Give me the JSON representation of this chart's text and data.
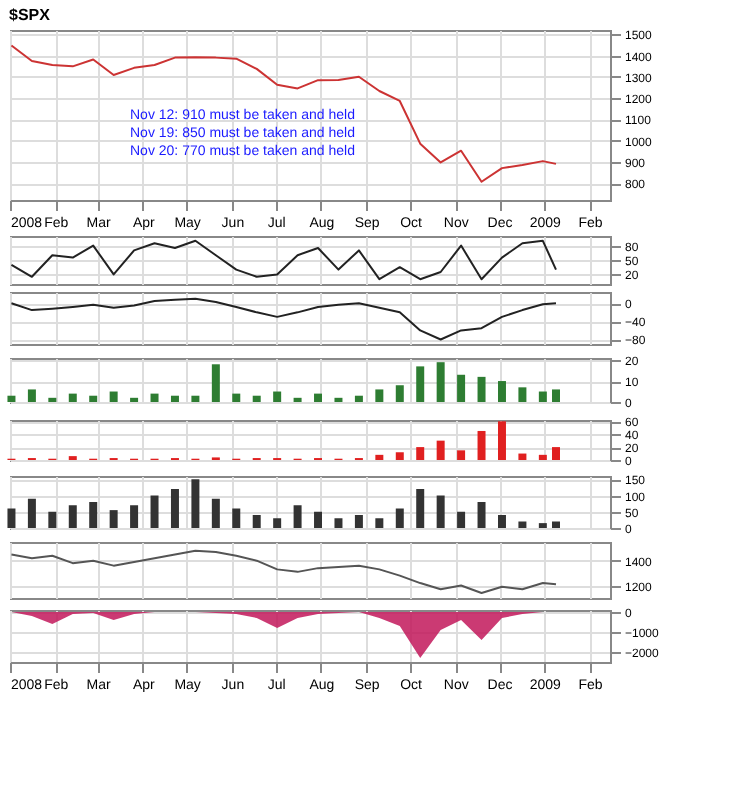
{
  "chart_data": [
    {
      "type": "line",
      "title": "$SPX",
      "x": [
        "2008-01-02",
        "2008-01-16",
        "2008-01-30",
        "2008-02-13",
        "2008-02-27",
        "2008-03-12",
        "2008-03-26",
        "2008-04-09",
        "2008-04-23",
        "2008-05-07",
        "2008-05-21",
        "2008-06-04",
        "2008-06-18",
        "2008-07-02",
        "2008-07-16",
        "2008-07-30",
        "2008-08-13",
        "2008-08-27",
        "2008-09-10",
        "2008-09-24",
        "2008-10-08",
        "2008-10-22",
        "2008-11-05",
        "2008-11-19",
        "2008-12-03",
        "2008-12-17",
        "2008-12-31",
        "2009-01-09"
      ],
      "series": [
        {
          "color": "#cc3333",
          "values": [
            1447,
            1374,
            1355,
            1349,
            1381,
            1308,
            1342,
            1355,
            1390,
            1392,
            1390,
            1385,
            1337,
            1262,
            1245,
            1284,
            1285,
            1300,
            1233,
            1186,
            985,
            897,
            952,
            806,
            870,
            885,
            903,
            890
          ]
        }
      ],
      "ylim": [
        720,
        1520
      ],
      "yticks": [
        800,
        900,
        1000,
        1100,
        1200,
        1300,
        1400,
        1500
      ],
      "grid": true,
      "xlim": [
        "2008-01-01",
        "2009-02-15"
      ],
      "xticks": [
        {
          "value": "2008-01-01",
          "label": "2008"
        },
        {
          "value": "2008-02-01",
          "label": "Feb"
        },
        {
          "value": "2008-03-01",
          "label": "Mar"
        },
        {
          "value": "2008-04-01",
          "label": "Apr"
        },
        {
          "value": "2008-05-01",
          "label": "May"
        },
        {
          "value": "2008-06-01",
          "label": "Jun"
        },
        {
          "value": "2008-07-01",
          "label": "Jul"
        },
        {
          "value": "2008-08-01",
          "label": "Aug"
        },
        {
          "value": "2008-09-01",
          "label": "Sep"
        },
        {
          "value": "2008-10-01",
          "label": "Oct"
        },
        {
          "value": "2008-11-01",
          "label": "Nov"
        },
        {
          "value": "2008-12-01",
          "label": "Dec"
        },
        {
          "value": "2009-01-01",
          "label": "2009"
        },
        {
          "value": "2009-02-01",
          "label": "Feb"
        }
      ],
      "annotations": [
        "Nov 12: 910 must be taken and held",
        "Nov 19: 850 must be taken and held",
        "Nov 20: 770 must be taken and held"
      ]
    },
    {
      "type": "line",
      "x": [
        "2008-01-02",
        "2008-01-16",
        "2008-01-30",
        "2008-02-13",
        "2008-02-27",
        "2008-03-12",
        "2008-03-26",
        "2008-04-09",
        "2008-04-23",
        "2008-05-07",
        "2008-05-21",
        "2008-06-04",
        "2008-06-18",
        "2008-07-02",
        "2008-07-16",
        "2008-07-30",
        "2008-08-13",
        "2008-08-27",
        "2008-09-10",
        "2008-09-24",
        "2008-10-08",
        "2008-10-22",
        "2008-11-05",
        "2008-11-19",
        "2008-12-03",
        "2008-12-17",
        "2008-12-31",
        "2009-01-09"
      ],
      "series": [
        {
          "color": "#222222",
          "values": [
            40,
            15,
            60,
            55,
            80,
            20,
            70,
            85,
            75,
            90,
            60,
            30,
            15,
            20,
            60,
            75,
            30,
            70,
            10,
            35,
            10,
            25,
            80,
            10,
            55,
            85,
            90,
            30
          ]
        }
      ],
      "ylim": [
        0,
        100
      ],
      "yticks": [
        20,
        50,
        80
      ],
      "grid": true,
      "tick_labels": "y",
      "xlim": [
        "2008-01-01",
        "2009-02-15"
      ]
    },
    {
      "type": "line",
      "x": [
        "2008-01-02",
        "2008-01-16",
        "2008-01-30",
        "2008-02-13",
        "2008-02-27",
        "2008-03-12",
        "2008-03-26",
        "2008-04-09",
        "2008-04-23",
        "2008-05-07",
        "2008-05-21",
        "2008-06-04",
        "2008-06-18",
        "2008-07-02",
        "2008-07-16",
        "2008-07-30",
        "2008-08-13",
        "2008-08-27",
        "2008-09-10",
        "2008-09-24",
        "2008-10-08",
        "2008-10-22",
        "2008-11-05",
        "2008-11-19",
        "2008-12-03",
        "2008-12-17",
        "2008-12-31",
        "2009-01-09"
      ],
      "series": [
        {
          "color": "#222222",
          "values": [
            0,
            -15,
            -12,
            -8,
            -3,
            -10,
            -5,
            5,
            8,
            10,
            3,
            -8,
            -20,
            -30,
            -20,
            -8,
            -3,
            0,
            -10,
            -20,
            -60,
            -80,
            -60,
            -55,
            -30,
            -15,
            -2,
            0
          ]
        }
      ],
      "ylim": [
        -90,
        25
      ],
      "yticks": [
        -80,
        -40,
        0
      ],
      "grid": true,
      "tick_labels": "y",
      "xlim": [
        "2008-01-01",
        "2009-02-15"
      ]
    },
    {
      "type": "bar",
      "x": [
        "2008-01-02",
        "2008-01-16",
        "2008-01-30",
        "2008-02-13",
        "2008-02-27",
        "2008-03-12",
        "2008-03-26",
        "2008-04-09",
        "2008-04-23",
        "2008-05-07",
        "2008-05-21",
        "2008-06-04",
        "2008-06-18",
        "2008-07-02",
        "2008-07-16",
        "2008-07-30",
        "2008-08-13",
        "2008-08-27",
        "2008-09-10",
        "2008-09-24",
        "2008-10-08",
        "2008-10-22",
        "2008-11-05",
        "2008-11-19",
        "2008-12-03",
        "2008-12-17",
        "2008-12-31",
        "2009-01-09"
      ],
      "series": [
        {
          "color": "#2e7d32",
          "values": [
            3,
            6,
            2,
            4,
            3,
            5,
            2,
            4,
            3,
            3,
            18,
            4,
            3,
            5,
            2,
            4,
            2,
            3,
            6,
            8,
            17,
            19,
            13,
            12,
            10,
            7,
            5,
            6
          ]
        }
      ],
      "ylim": [
        0,
        21
      ],
      "yticks": [
        0,
        10,
        20
      ],
      "grid": true,
      "tick_labels": "y",
      "xlim": [
        "2008-01-01",
        "2009-02-15"
      ]
    },
    {
      "type": "bar",
      "x": [
        "2008-01-02",
        "2008-01-16",
        "2008-01-30",
        "2008-02-13",
        "2008-02-27",
        "2008-03-12",
        "2008-03-26",
        "2008-04-09",
        "2008-04-23",
        "2008-05-07",
        "2008-05-21",
        "2008-06-04",
        "2008-06-18",
        "2008-07-02",
        "2008-07-16",
        "2008-07-30",
        "2008-08-13",
        "2008-08-27",
        "2008-09-10",
        "2008-09-24",
        "2008-10-08",
        "2008-10-22",
        "2008-11-05",
        "2008-11-19",
        "2008-12-03",
        "2008-12-17",
        "2008-12-31",
        "2009-01-09"
      ],
      "series": [
        {
          "color": "#e02020",
          "values": [
            2,
            3,
            2,
            6,
            2,
            3,
            2,
            2,
            3,
            2,
            4,
            2,
            3,
            3,
            2,
            3,
            2,
            3,
            8,
            12,
            20,
            30,
            15,
            45,
            60,
            10,
            8,
            20
          ]
        }
      ],
      "ylim": [
        0,
        62
      ],
      "yticks": [
        0,
        20,
        40,
        60
      ],
      "grid": true,
      "tick_labels": "y",
      "xlim": [
        "2008-01-01",
        "2009-02-15"
      ]
    },
    {
      "type": "bar",
      "x": [
        "2008-01-02",
        "2008-01-16",
        "2008-01-30",
        "2008-02-13",
        "2008-02-27",
        "2008-03-12",
        "2008-03-26",
        "2008-04-09",
        "2008-04-23",
        "2008-05-07",
        "2008-05-21",
        "2008-06-04",
        "2008-06-18",
        "2008-07-02",
        "2008-07-16",
        "2008-07-30",
        "2008-08-13",
        "2008-08-27",
        "2008-09-10",
        "2008-09-24",
        "2008-10-08",
        "2008-10-22",
        "2008-11-05",
        "2008-11-19",
        "2008-12-03",
        "2008-12-17",
        "2008-12-31",
        "2009-01-09"
      ],
      "series": [
        {
          "color": "#333333",
          "values": [
            60,
            90,
            50,
            70,
            80,
            55,
            70,
            100,
            120,
            150,
            90,
            60,
            40,
            30,
            70,
            50,
            30,
            40,
            30,
            60,
            120,
            100,
            50,
            80,
            40,
            20,
            15,
            20
          ]
        }
      ],
      "ylim": [
        0,
        160
      ],
      "yticks": [
        0,
        50,
        100,
        150
      ],
      "grid": true,
      "tick_labels": "y",
      "xlim": [
        "2008-01-01",
        "2009-02-15"
      ]
    },
    {
      "type": "line",
      "x": [
        "2008-01-02",
        "2008-01-16",
        "2008-01-30",
        "2008-02-13",
        "2008-02-27",
        "2008-03-12",
        "2008-03-26",
        "2008-04-09",
        "2008-04-23",
        "2008-05-07",
        "2008-05-21",
        "2008-06-04",
        "2008-06-18",
        "2008-07-02",
        "2008-07-16",
        "2008-07-30",
        "2008-08-13",
        "2008-08-27",
        "2008-09-10",
        "2008-09-24",
        "2008-10-08",
        "2008-10-22",
        "2008-11-05",
        "2008-11-19",
        "2008-12-03",
        "2008-12-17",
        "2008-12-31",
        "2009-01-09"
      ],
      "series": [
        {
          "color": "#555555",
          "values": [
            1450,
            1420,
            1440,
            1380,
            1400,
            1360,
            1390,
            1420,
            1450,
            1480,
            1470,
            1440,
            1400,
            1330,
            1310,
            1340,
            1350,
            1360,
            1330,
            1280,
            1220,
            1170,
            1200,
            1140,
            1190,
            1170,
            1220,
            1210
          ]
        }
      ],
      "ylim": [
        1100,
        1550
      ],
      "yticks": [
        1200,
        1400
      ],
      "grid": true,
      "tick_labels": "y",
      "xlim": [
        "2008-01-01",
        "2009-02-15"
      ]
    },
    {
      "type": "area",
      "x": [
        "2008-01-02",
        "2008-01-16",
        "2008-01-30",
        "2008-02-13",
        "2008-02-27",
        "2008-03-12",
        "2008-03-26",
        "2008-04-09",
        "2008-04-23",
        "2008-05-07",
        "2008-05-21",
        "2008-06-04",
        "2008-06-18",
        "2008-07-02",
        "2008-07-16",
        "2008-07-30",
        "2008-08-13",
        "2008-08-27",
        "2008-09-10",
        "2008-09-24",
        "2008-10-08",
        "2008-10-22",
        "2008-11-05",
        "2008-11-19",
        "2008-12-03",
        "2008-12-17",
        "2008-12-31",
        "2009-01-09"
      ],
      "series": [
        {
          "color": "#c2185b",
          "values": [
            0,
            -200,
            -600,
            -100,
            -50,
            -400,
            -100,
            0,
            0,
            0,
            -50,
            -100,
            -300,
            -800,
            -300,
            -100,
            -50,
            0,
            -300,
            -700,
            -2300,
            -900,
            -400,
            -1400,
            -300,
            -100,
            0,
            0
          ]
        }
      ],
      "ylim": [
        -2500,
        100
      ],
      "yticks": [
        -2000,
        -1000,
        0
      ],
      "grid": true,
      "xlim": [
        "2008-01-01",
        "2009-02-15"
      ],
      "xticks": [
        {
          "value": "2008-01-01",
          "label": "2008"
        },
        {
          "value": "2008-02-01",
          "label": "Feb"
        },
        {
          "value": "2008-03-01",
          "label": "Mar"
        },
        {
          "value": "2008-04-01",
          "label": "Apr"
        },
        {
          "value": "2008-05-01",
          "label": "May"
        },
        {
          "value": "2008-06-01",
          "label": "Jun"
        },
        {
          "value": "2008-07-01",
          "label": "Jul"
        },
        {
          "value": "2008-08-01",
          "label": "Aug"
        },
        {
          "value": "2008-09-01",
          "label": "Sep"
        },
        {
          "value": "2008-10-01",
          "label": "Oct"
        },
        {
          "value": "2008-11-01",
          "label": "Nov"
        },
        {
          "value": "2008-12-01",
          "label": "Dec"
        },
        {
          "value": "2009-01-01",
          "label": "2009"
        },
        {
          "value": "2009-02-01",
          "label": "Feb"
        }
      ]
    }
  ]
}
